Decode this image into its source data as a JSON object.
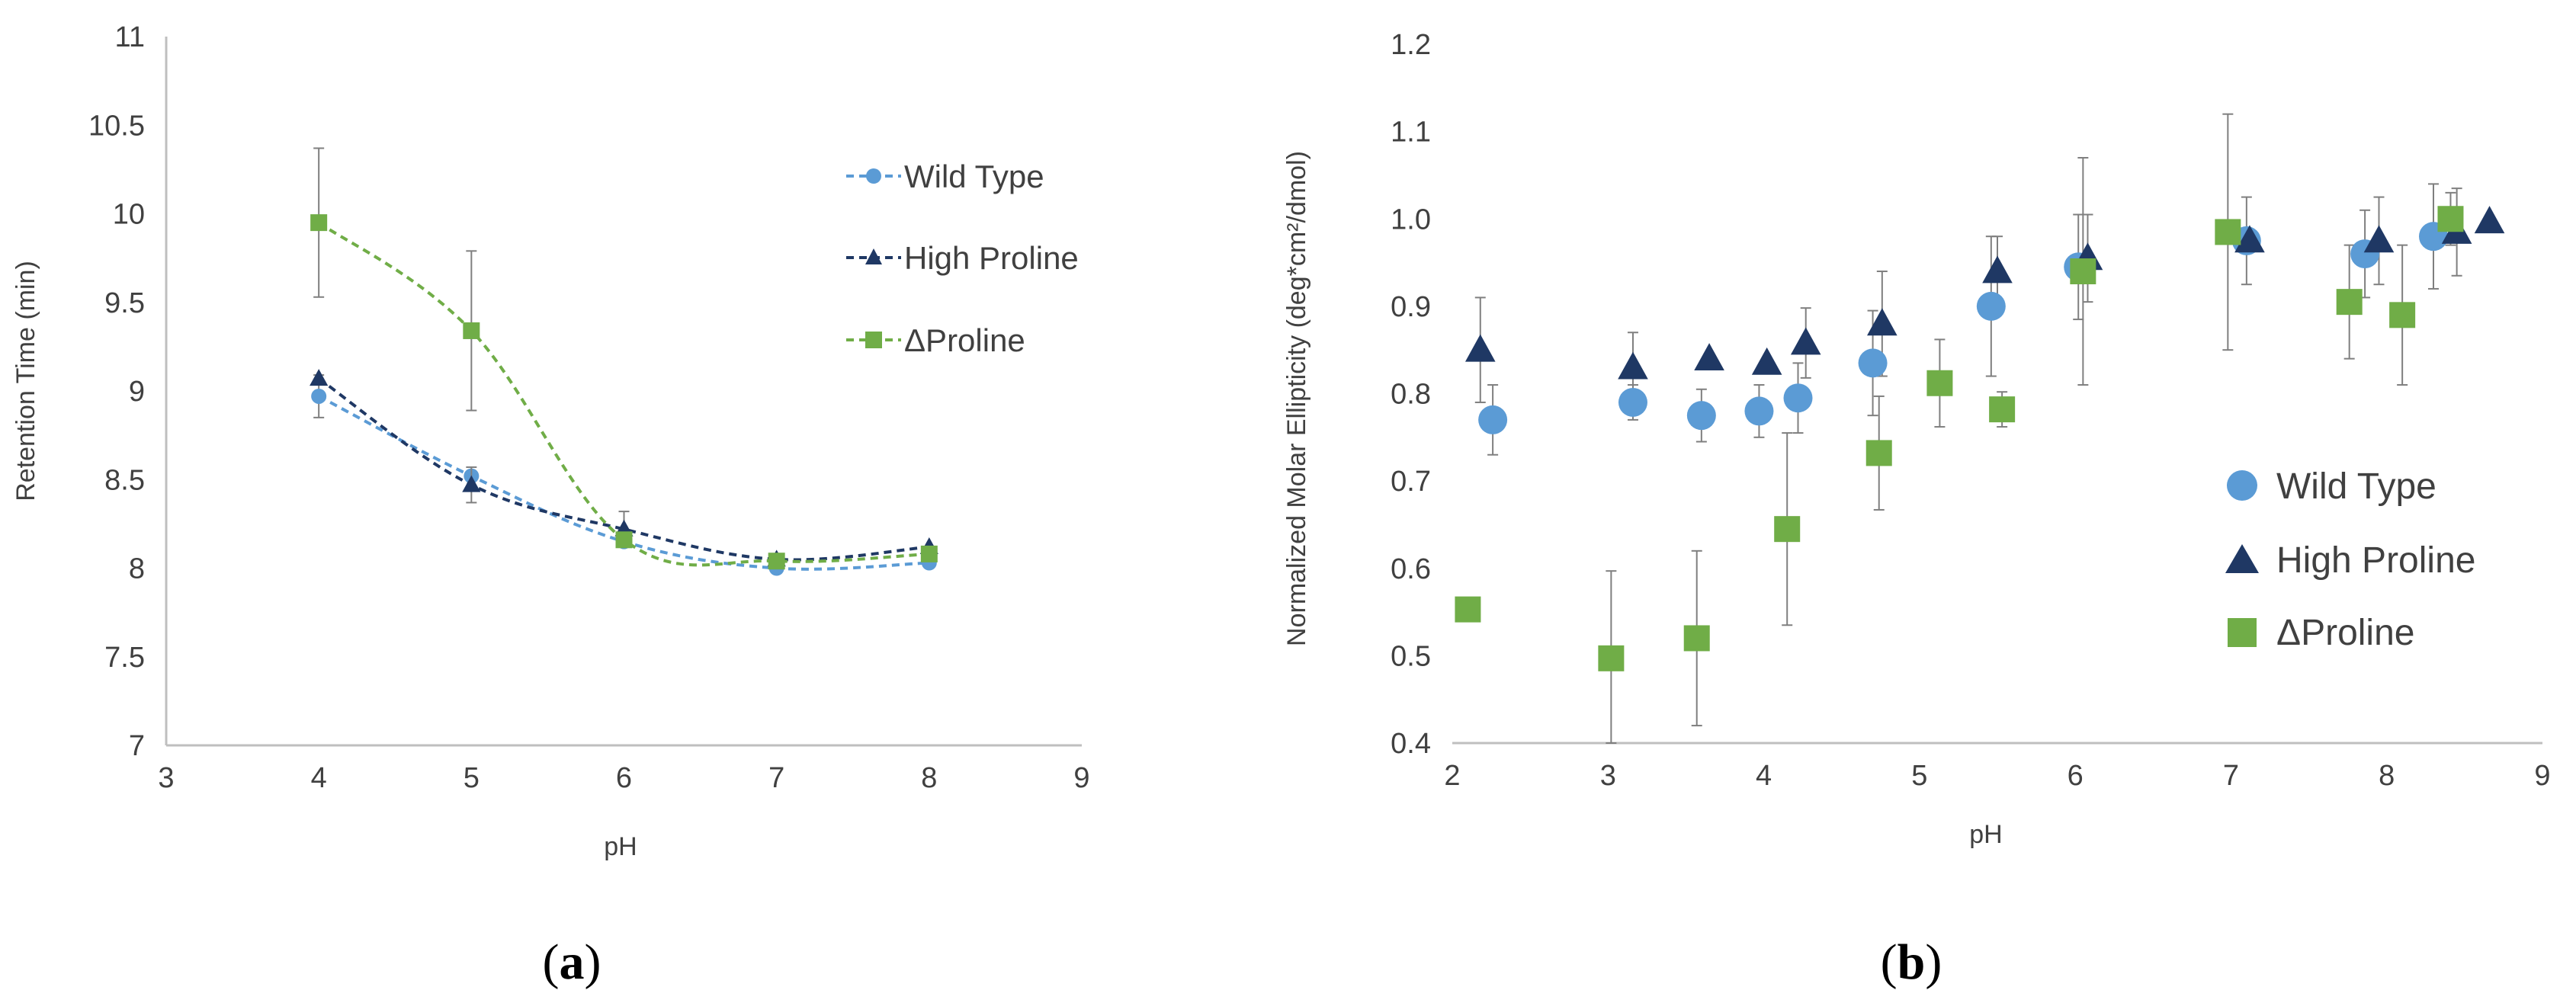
{
  "colors": {
    "wild_type": "#5B9BD5",
    "high_proline": "#1F3864",
    "delta_proline": "#70AD47",
    "axis": "#bfbfbf",
    "error_bar": "#7f7f7f",
    "text": "#404040"
  },
  "chart_data": [
    {
      "panel": "a",
      "panel_label_open": "(",
      "panel_label_letter": "a",
      "panel_label_close": ")",
      "type": "line",
      "style": "dashed smoothed lines with markers",
      "xlabel": "pH",
      "ylabel": "Retention Time (min)",
      "xlim": [
        3,
        9
      ],
      "ylim": [
        7,
        11
      ],
      "xticks": [
        3,
        4,
        5,
        6,
        7,
        8,
        9
      ],
      "yticks": [
        7,
        7.5,
        8,
        8.5,
        9,
        9.5,
        10,
        10.5,
        11
      ],
      "xtick_labels": [
        "3",
        "4",
        "5",
        "6",
        "7",
        "8",
        "9"
      ],
      "ytick_labels": [
        "7",
        "7.5",
        "8",
        "8.5",
        "9",
        "9.5",
        "10",
        "10.5",
        "11"
      ],
      "legend_position": "right",
      "grid": false,
      "series": [
        {
          "name": "Wild Type",
          "marker": "circle",
          "color": "#5B9BD5",
          "x": [
            4,
            5,
            6,
            7,
            8
          ],
          "y": [
            8.97,
            8.52,
            8.15,
            8.0,
            8.03
          ],
          "err": [
            0.12,
            0.0,
            0.0,
            0.0,
            0.0
          ]
        },
        {
          "name": "High Proline",
          "marker": "triangle",
          "color": "#1F3864",
          "x": [
            4,
            5,
            6,
            7,
            8
          ],
          "y": [
            9.07,
            8.47,
            8.22,
            8.05,
            8.12
          ],
          "err": [
            0.0,
            0.1,
            0.1,
            0.0,
            0.0
          ]
        },
        {
          "name": "ΔProline",
          "marker": "square",
          "color": "#70AD47",
          "x": [
            4,
            5,
            6,
            7,
            8
          ],
          "y": [
            9.95,
            9.34,
            8.16,
            8.04,
            8.08
          ],
          "err": [
            0.42,
            0.45,
            0.0,
            0.0,
            0.0
          ]
        }
      ]
    },
    {
      "panel": "b",
      "panel_label_open": "(",
      "panel_label_letter": "b",
      "panel_label_close": ")",
      "type": "scatter",
      "xlabel": "pH",
      "ylabel": "Normalized Molar Ellipticity (deg*cm²/dmol)",
      "xlim": [
        2,
        9
      ],
      "ylim": [
        0.4,
        1.2
      ],
      "xticks": [
        2,
        3,
        4,
        5,
        6,
        7,
        8,
        9
      ],
      "yticks": [
        0.4,
        0.5,
        0.6,
        0.7,
        0.8,
        0.9,
        1.0,
        1.1,
        1.2
      ],
      "xtick_labels": [
        "2",
        "3",
        "4",
        "5",
        "6",
        "7",
        "8",
        "9"
      ],
      "ytick_labels": [
        "0.4",
        "0.5",
        "0.6",
        "0.7",
        "0.8",
        "0.9",
        "1.0",
        "1.1",
        "1.2"
      ],
      "legend_position": "lower right",
      "grid": false,
      "series": [
        {
          "name": "Wild Type",
          "marker": "circle",
          "color": "#5B9BD5",
          "x": [
            2.26,
            3.16,
            3.6,
            3.97,
            4.22,
            4.7,
            5.46,
            6.02,
            7.1,
            7.86,
            8.3
          ],
          "y": [
            0.77,
            0.79,
            0.775,
            0.78,
            0.795,
            0.835,
            0.9,
            0.945,
            0.975,
            0.96,
            0.98
          ],
          "err": [
            0.04,
            0.02,
            0.03,
            0.03,
            0.04,
            0.06,
            0.08,
            0.06,
            0.05,
            0.05,
            0.06
          ]
        },
        {
          "name": "High Proline",
          "marker": "triangle",
          "color": "#1F3864",
          "x": [
            2.18,
            3.16,
            3.65,
            4.02,
            4.27,
            4.76,
            5.5,
            6.08,
            7.12,
            7.95,
            8.45,
            8.66
          ],
          "y": [
            0.85,
            0.83,
            0.84,
            0.835,
            0.858,
            0.88,
            0.94,
            0.955,
            0.975,
            0.975,
            0.985,
            0.997
          ],
          "err": [
            0.06,
            0.04,
            0.0,
            0.0,
            0.04,
            0.06,
            0.04,
            0.05,
            0.0,
            0.05,
            0.05,
            0.0
          ]
        },
        {
          "name": "ΔProline",
          "marker": "square",
          "color": "#70AD47",
          "x": [
            2.1,
            3.02,
            3.57,
            4.15,
            4.74,
            5.13,
            5.53,
            6.05,
            6.98,
            7.76,
            8.1,
            8.41
          ],
          "y": [
            0.553,
            0.497,
            0.52,
            0.645,
            0.732,
            0.812,
            0.782,
            0.94,
            0.985,
            0.905,
            0.89,
            1.0
          ],
          "err": [
            0.0,
            0.1,
            0.1,
            0.11,
            0.065,
            0.05,
            0.02,
            0.13,
            0.135,
            0.065,
            0.08,
            0.03
          ]
        }
      ]
    }
  ]
}
